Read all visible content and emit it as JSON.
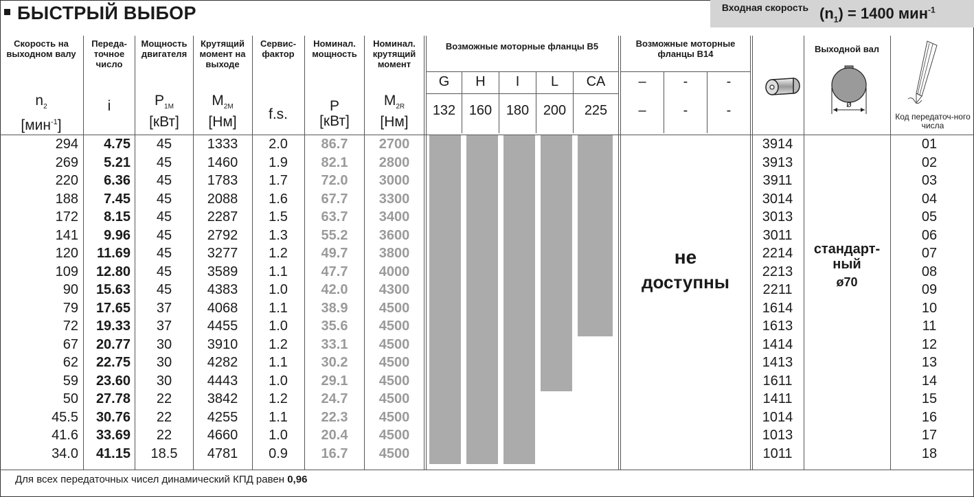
{
  "title": "БЫСТРЫЙ ВЫБОР",
  "input_speed": {
    "label": "Входная скорость",
    "value_prefix": "(n",
    "value_sub": "1",
    "value_mid": ") = 1400 мин",
    "value_sup": "-1"
  },
  "headers": {
    "n2": {
      "label": "Скорость на выходном валу",
      "symbol": "n",
      "sub": "2",
      "unit": "[мин",
      "unit_sup": "-1",
      "unit_end": "]"
    },
    "i": {
      "label": "Переда-точное число",
      "symbol": "i"
    },
    "p1m": {
      "label": "Мощность двигателя",
      "symbol": "P",
      "sub": "1M",
      "unit": "[кВт]"
    },
    "m2m": {
      "label": "Крутящий момент на выходе",
      "symbol": "M",
      "sub": "2M",
      "unit": "[Нм]"
    },
    "fs": {
      "label": "Сервис-фактор",
      "symbol": "f.s."
    },
    "p": {
      "label": "Номинал. мощность",
      "symbol": "P",
      "unit": "[кВт]"
    },
    "m2r": {
      "label": "Номинал. крутящий момент",
      "symbol": "M",
      "sub": "2R",
      "unit": "[Нм]"
    },
    "b5": {
      "label": "Возможные моторные фланцы В5",
      "letters": [
        "G",
        "H",
        "I",
        "L",
        "CA"
      ],
      "sizes": [
        "132",
        "160",
        "180",
        "200",
        "225"
      ]
    },
    "b14": {
      "label": "Возможные моторные фланцы В14",
      "letters": [
        "–",
        "-",
        "-"
      ],
      "sizes": [
        "–",
        "-",
        "-"
      ]
    },
    "shaft": {
      "label": "Выходной вал",
      "diameter_symbol": "ø"
    },
    "code": {
      "label": "Код передаточ-ного числа"
    }
  },
  "rows": [
    {
      "n2": "294",
      "i": "4.75",
      "p1m": "45",
      "m2m": "1333",
      "fs": "2.0",
      "p": "86.7",
      "m2r": "2700",
      "art": "3914",
      "code": "01"
    },
    {
      "n2": "269",
      "i": "5.21",
      "p1m": "45",
      "m2m": "1460",
      "fs": "1.9",
      "p": "82.1",
      "m2r": "2800",
      "art": "3913",
      "code": "02"
    },
    {
      "n2": "220",
      "i": "6.36",
      "p1m": "45",
      "m2m": "1783",
      "fs": "1.7",
      "p": "72.0",
      "m2r": "3000",
      "art": "3911",
      "code": "03"
    },
    {
      "n2": "188",
      "i": "7.45",
      "p1m": "45",
      "m2m": "2088",
      "fs": "1.6",
      "p": "67.7",
      "m2r": "3300",
      "art": "3014",
      "code": "04"
    },
    {
      "n2": "172",
      "i": "8.15",
      "p1m": "45",
      "m2m": "2287",
      "fs": "1.5",
      "p": "63.7",
      "m2r": "3400",
      "art": "3013",
      "code": "05"
    },
    {
      "n2": "141",
      "i": "9.96",
      "p1m": "45",
      "m2m": "2792",
      "fs": "1.3",
      "p": "55.2",
      "m2r": "3600",
      "art": "3011",
      "code": "06"
    },
    {
      "n2": "120",
      "i": "11.69",
      "p1m": "45",
      "m2m": "3277",
      "fs": "1.2",
      "p": "49.7",
      "m2r": "3800",
      "art": "2214",
      "code": "07"
    },
    {
      "n2": "109",
      "i": "12.80",
      "p1m": "45",
      "m2m": "3589",
      "fs": "1.1",
      "p": "47.7",
      "m2r": "4000",
      "art": "2213",
      "code": "08"
    },
    {
      "n2": "90",
      "i": "15.63",
      "p1m": "45",
      "m2m": "4383",
      "fs": "1.0",
      "p": "42.0",
      "m2r": "4300",
      "art": "2211",
      "code": "09"
    },
    {
      "n2": "79",
      "i": "17.65",
      "p1m": "37",
      "m2m": "4068",
      "fs": "1.1",
      "p": "38.9",
      "m2r": "4500",
      "art": "1614",
      "code": "10"
    },
    {
      "n2": "72",
      "i": "19.33",
      "p1m": "37",
      "m2m": "4455",
      "fs": "1.0",
      "p": "35.6",
      "m2r": "4500",
      "art": "1613",
      "code": "11"
    },
    {
      "n2": "67",
      "i": "20.77",
      "p1m": "30",
      "m2m": "3910",
      "fs": "1.2",
      "p": "33.1",
      "m2r": "4500",
      "art": "1414",
      "code": "12"
    },
    {
      "n2": "62",
      "i": "22.75",
      "p1m": "30",
      "m2m": "4282",
      "fs": "1.1",
      "p": "30.2",
      "m2r": "4500",
      "art": "1413",
      "code": "13"
    },
    {
      "n2": "59",
      "i": "23.60",
      "p1m": "30",
      "m2m": "4443",
      "fs": "1.0",
      "p": "29.1",
      "m2r": "4500",
      "art": "1611",
      "code": "14"
    },
    {
      "n2": "50",
      "i": "27.78",
      "p1m": "22",
      "m2m": "3842",
      "fs": "1.2",
      "p": "24.7",
      "m2r": "4500",
      "art": "1411",
      "code": "15"
    },
    {
      "n2": "45.5",
      "i": "30.76",
      "p1m": "22",
      "m2m": "4255",
      "fs": "1.1",
      "p": "22.3",
      "m2r": "4500",
      "art": "1014",
      "code": "16"
    },
    {
      "n2": "41.6",
      "i": "33.69",
      "p1m": "22",
      "m2m": "4660",
      "fs": "1.0",
      "p": "20.4",
      "m2r": "4500",
      "art": "1013",
      "code": "17"
    },
    {
      "n2": "34.0",
      "i": "41.15",
      "p1m": "18.5",
      "m2m": "4781",
      "fs": "0.9",
      "p": "16.7",
      "m2r": "4500",
      "art": "1011",
      "code": "18"
    }
  ],
  "b5_availability_rows": {
    "G": 18,
    "H": 18,
    "I": 18,
    "L": 14,
    "CA": 11
  },
  "b14_text": {
    "line1": "не",
    "line2": "доступны"
  },
  "shaft_text": {
    "line1": "стандарт-",
    "line2": "ный",
    "line3": "ø70"
  },
  "footnote": {
    "text": "Для всех передаточных чисел динамический КПД равен ",
    "value": "0,96"
  },
  "colors": {
    "availability_bar": "#ababab",
    "header_box": "#d4d4d4",
    "grey_value": "#9a9a9a"
  }
}
